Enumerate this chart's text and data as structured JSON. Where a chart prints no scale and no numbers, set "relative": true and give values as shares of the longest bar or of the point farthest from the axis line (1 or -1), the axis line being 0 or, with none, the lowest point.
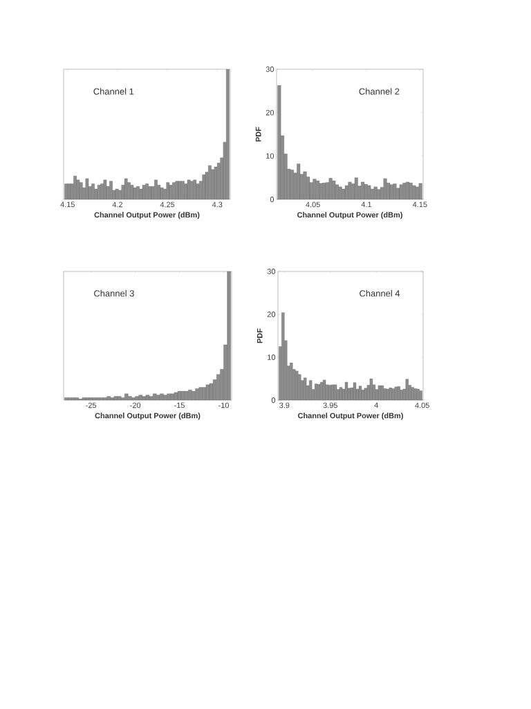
{
  "chart_data": [
    {
      "type": "bar",
      "relative": true,
      "tick_labels": "x",
      "color": "#8c8c8c",
      "xlabel": "Channel Output Power (dBm)",
      "annotations": [
        "Channel 1"
      ],
      "xlim": [
        4.146,
        4.313
      ],
      "xticks": [
        4.15,
        4.2,
        4.25,
        4.3
      ],
      "x": [
        4.1485,
        4.1515,
        4.1545,
        4.1575,
        4.1605,
        4.1635,
        4.1665,
        4.1695,
        4.1725,
        4.1755,
        4.1785,
        4.1815,
        4.1845,
        4.1875,
        4.1905,
        4.1935,
        4.1965,
        4.1995,
        4.2025,
        4.2055,
        4.2085,
        4.2115,
        4.2145,
        4.2175,
        4.2205,
        4.2235,
        4.2265,
        4.2295,
        4.2325,
        4.2355,
        4.2385,
        4.2415,
        4.2445,
        4.2475,
        4.2505,
        4.2535,
        4.2565,
        4.2595,
        4.2625,
        4.2655,
        4.2685,
        4.2715,
        4.2745,
        4.2775,
        4.2805,
        4.2835,
        4.2865,
        4.2895,
        4.2925,
        4.2955,
        4.2985,
        4.3015,
        4.3045,
        4.3075,
        4.3105
      ],
      "values": [
        0.12,
        0.12,
        0.12,
        0.18,
        0.15,
        0.13,
        0.09,
        0.16,
        0.1,
        0.12,
        0.08,
        0.11,
        0.12,
        0.15,
        0.1,
        0.14,
        0.07,
        0.08,
        0.07,
        0.11,
        0.16,
        0.13,
        0.11,
        0.09,
        0.1,
        0.08,
        0.11,
        0.12,
        0.1,
        0.1,
        0.15,
        0.11,
        0.09,
        0.08,
        0.13,
        0.11,
        0.13,
        0.14,
        0.14,
        0.14,
        0.12,
        0.15,
        0.14,
        0.15,
        0.12,
        0.14,
        0.19,
        0.21,
        0.26,
        0.23,
        0.25,
        0.28,
        0.32,
        0.44,
        1.0
      ]
    },
    {
      "type": "histogram",
      "color": "#8c8c8c",
      "xlabel": "Channel Output Power (dBm)",
      "ylabel": "PDF",
      "annotations": [
        "Channel 2"
      ],
      "xlim": [
        4.016,
        4.153
      ],
      "ylim": [
        0,
        30
      ],
      "xticks": [
        4.05,
        4.1,
        4.15
      ],
      "yticks": [
        0,
        10,
        20,
        30
      ],
      "bins": [
        4.017,
        4.02,
        4.023,
        4.026,
        4.029,
        4.032,
        4.035,
        4.038,
        4.041,
        4.044,
        4.047,
        4.05,
        4.053,
        4.056,
        4.059,
        4.062,
        4.065,
        4.068,
        4.071,
        4.074,
        4.077,
        4.08,
        4.083,
        4.086,
        4.089,
        4.092,
        4.095,
        4.098,
        4.101,
        4.104,
        4.107,
        4.11,
        4.113,
        4.116,
        4.119,
        4.122,
        4.125,
        4.128,
        4.131,
        4.134,
        4.137,
        4.14,
        4.143,
        4.146,
        4.149,
        4.152
      ],
      "values": [
        26.3,
        14.7,
        10.5,
        7.0,
        6.8,
        6.1,
        8.2,
        5.8,
        6.4,
        5.2,
        3.9,
        4.7,
        4.3,
        3.7,
        3.8,
        3.9,
        4.9,
        4.3,
        3.4,
        2.9,
        2.4,
        3.2,
        4.0,
        3.6,
        5.0,
        3.1,
        4.0,
        3.5,
        3.2,
        2.4,
        2.9,
        2.3,
        2.8,
        4.8,
        3.8,
        3.4,
        3.6,
        2.6,
        3.4,
        3.8,
        4.0,
        3.8,
        3.2,
        2.9,
        3.7
      ]
    },
    {
      "type": "bar",
      "relative": true,
      "tick_labels": "x",
      "color": "#8c8c8c",
      "xlabel": "Channel Output Power (dBm)",
      "annotations": [
        "Channel 3"
      ],
      "xlim": [
        -28.1,
        -9.1
      ],
      "xticks": [
        -25,
        -20,
        -15,
        -10
      ],
      "x": [
        -27.8,
        -27.4,
        -27,
        -26.6,
        -26.2,
        -25.8,
        -25.4,
        -25,
        -24.6,
        -24.2,
        -23.8,
        -23.4,
        -23,
        -22.6,
        -22.2,
        -21.8,
        -21.4,
        -21,
        -20.6,
        -20.2,
        -19.8,
        -19.4,
        -19,
        -18.6,
        -18.2,
        -17.8,
        -17.4,
        -17,
        -16.6,
        -16.2,
        -15.8,
        -15.4,
        -15,
        -14.6,
        -14.2,
        -13.8,
        -13.4,
        -13,
        -12.6,
        -12.2,
        -11.8,
        -11.4,
        -11,
        -10.6,
        -10.2,
        -9.8,
        -9.4
      ],
      "values": [
        0.02,
        0.02,
        0.02,
        0.02,
        0.01,
        0.02,
        0.02,
        0.02,
        0.02,
        0.02,
        0.02,
        0.02,
        0.03,
        0.02,
        0.03,
        0.03,
        0.02,
        0.05,
        0.03,
        0.02,
        0.03,
        0.04,
        0.03,
        0.04,
        0.03,
        0.05,
        0.04,
        0.05,
        0.04,
        0.05,
        0.05,
        0.06,
        0.07,
        0.07,
        0.07,
        0.08,
        0.07,
        0.09,
        0.1,
        0.1,
        0.12,
        0.13,
        0.16,
        0.2,
        0.24,
        0.43,
        1.0
      ]
    },
    {
      "type": "histogram",
      "color": "#8c8c8c",
      "xlabel": "Channel Output Power (dBm)",
      "ylabel": "PDF",
      "annotations": [
        "Channel 4"
      ],
      "xlim": [
        3.893,
        4.051
      ],
      "ylim": [
        0,
        30
      ],
      "xticks": [
        3.9,
        3.95,
        4,
        4.05
      ],
      "yticks": [
        0,
        10,
        20,
        30
      ],
      "bins": [
        3.894,
        3.897,
        3.9,
        3.903,
        3.906,
        3.909,
        3.912,
        3.915,
        3.918,
        3.921,
        3.924,
        3.927,
        3.93,
        3.933,
        3.936,
        3.939,
        3.942,
        3.945,
        3.948,
        3.951,
        3.954,
        3.957,
        3.96,
        3.963,
        3.966,
        3.969,
        3.972,
        3.975,
        3.978,
        3.981,
        3.984,
        3.987,
        3.99,
        3.993,
        3.996,
        3.999,
        4.002,
        4.005,
        4.008,
        4.011,
        4.014,
        4.017,
        4.02,
        4.023,
        4.026,
        4.029,
        4.032,
        4.035,
        4.038,
        4.041,
        4.044,
        4.047,
        4.05
      ],
      "values": [
        12.5,
        20.4,
        13.9,
        8.0,
        8.7,
        7.2,
        6.8,
        6.0,
        4.6,
        5.2,
        3.4,
        4.6,
        2.5,
        3.8,
        3.7,
        4.2,
        4.7,
        3.6,
        3.5,
        3.6,
        3.6,
        2.5,
        3.0,
        2.6,
        4.2,
        2.8,
        2.9,
        4.1,
        2.6,
        3.3,
        2.4,
        2.8,
        3.5,
        5.0,
        3.6,
        2.5,
        3.4,
        3.4,
        2.7,
        2.6,
        2.9,
        2.7,
        3.1,
        3.2,
        2.4,
        2.6,
        4.9,
        3.5,
        3.0,
        2.7,
        2.6,
        2.2
      ]
    }
  ]
}
